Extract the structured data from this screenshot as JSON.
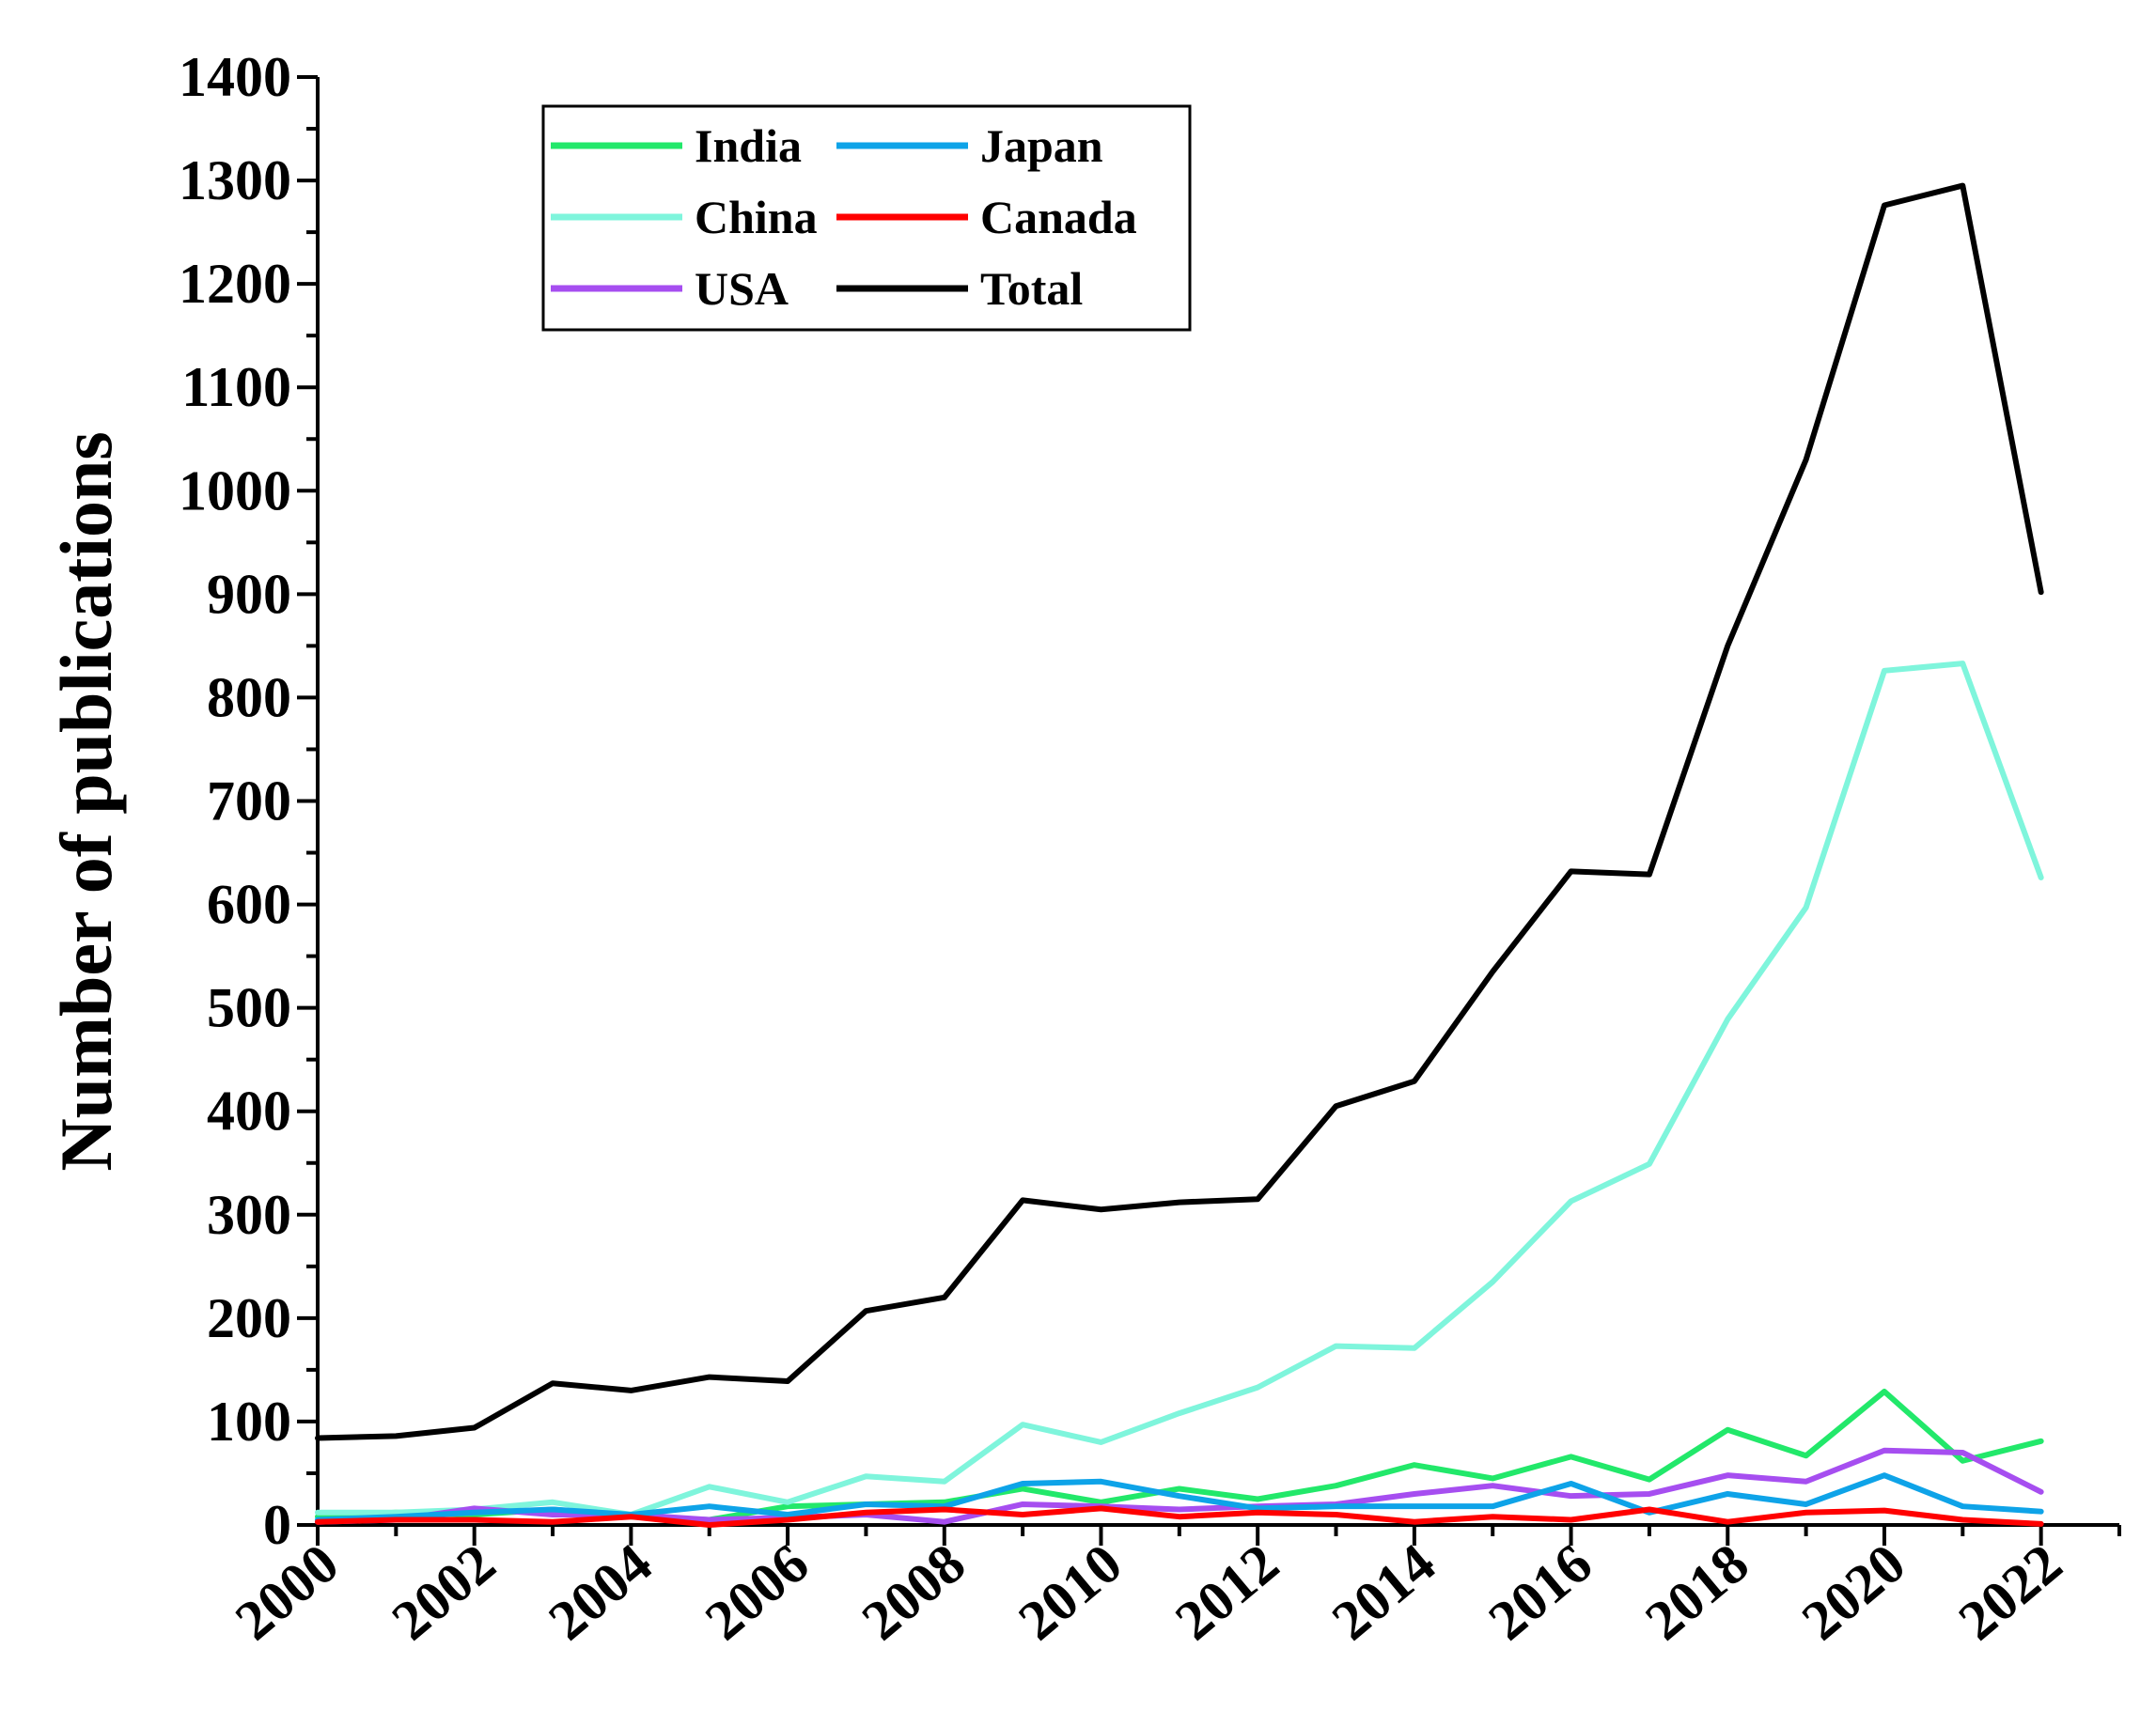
{
  "chart_data": {
    "type": "line",
    "title": "",
    "xlabel": "",
    "ylabel": "Number of publications",
    "x": [
      2000,
      2001,
      2002,
      2003,
      2004,
      2005,
      2006,
      2007,
      2008,
      2009,
      2010,
      2011,
      2012,
      2013,
      2014,
      2015,
      2016,
      2017,
      2018,
      2019,
      2020,
      2021,
      2022
    ],
    "xlim": [
      2000,
      2023
    ],
    "ylim": [
      0,
      1400
    ],
    "x_ticks": [
      "2000",
      "2002",
      "2004",
      "2006",
      "2008",
      "2010",
      "2012",
      "2014",
      "2016",
      "2018",
      "2020",
      "2022"
    ],
    "y_ticks": [
      "0",
      "100",
      "200",
      "300",
      "400",
      "500",
      "600",
      "700",
      "800",
      "900",
      "1000",
      "1100",
      "1200",
      "1300",
      "1400"
    ],
    "grid": false,
    "legend_position": "top-left",
    "series": [
      {
        "name": "India",
        "color": "#22e86a",
        "values": [
          8,
          12,
          10,
          15,
          8,
          5,
          18,
          20,
          22,
          35,
          22,
          35,
          25,
          38,
          58,
          45,
          66,
          44,
          92,
          67,
          129,
          62,
          81
        ]
      },
      {
        "name": "China",
        "color": "#7ff5dc",
        "values": [
          12,
          12,
          15,
          22,
          10,
          37,
          22,
          47,
          42,
          97,
          80,
          108,
          133,
          173,
          171,
          235,
          313,
          349,
          489,
          597,
          826,
          833,
          626
        ]
      },
      {
        "name": "USA",
        "color": "#a64ef0",
        "values": [
          3,
          5,
          16,
          10,
          10,
          5,
          7,
          10,
          3,
          20,
          18,
          15,
          18,
          20,
          30,
          38,
          28,
          30,
          48,
          42,
          72,
          70,
          32
        ]
      },
      {
        "name": "Japan",
        "color": "#0ea3e8",
        "values": [
          5,
          8,
          12,
          15,
          10,
          18,
          10,
          20,
          18,
          40,
          42,
          28,
          16,
          18,
          18,
          18,
          40,
          12,
          30,
          20,
          48,
          18,
          13
        ]
      },
      {
        "name": "Canada",
        "color": "#ff0000",
        "values": [
          3,
          5,
          5,
          3,
          8,
          0,
          5,
          12,
          15,
          10,
          16,
          8,
          12,
          10,
          3,
          8,
          5,
          15,
          3,
          12,
          14,
          5,
          1
        ]
      },
      {
        "name": "Total",
        "color": "#000000",
        "values": [
          84,
          86,
          94,
          137,
          130,
          143,
          139,
          207,
          220,
          314,
          305,
          312,
          315,
          405,
          429,
          535,
          632,
          629,
          850,
          1030,
          1276,
          1295,
          902
        ]
      }
    ],
    "legend_order": [
      "India",
      "Japan",
      "China",
      "Canada",
      "USA",
      "Total"
    ]
  }
}
